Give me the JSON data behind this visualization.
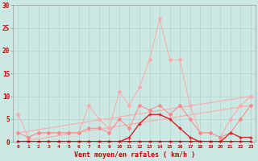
{
  "x": [
    0,
    1,
    2,
    3,
    4,
    5,
    6,
    7,
    8,
    9,
    10,
    11,
    12,
    13,
    14,
    15,
    16,
    17,
    18,
    19,
    20,
    21,
    22,
    23
  ],
  "series_rafales_max": [
    6,
    1,
    2,
    2,
    2,
    2,
    2,
    8,
    5,
    3,
    11,
    8,
    12,
    18,
    27,
    18,
    18,
    8,
    2,
    2,
    1,
    5,
    8,
    10
  ],
  "series_rafales_mid": [
    2,
    1,
    2,
    2,
    2,
    2,
    2,
    3,
    3,
    2,
    5,
    3,
    8,
    7,
    8,
    6,
    8,
    5,
    2,
    2,
    1,
    2,
    5,
    8
  ],
  "series_vent_moyen": [
    0,
    0,
    0,
    0,
    0,
    0,
    0,
    0,
    0,
    0,
    0,
    1,
    4,
    6,
    6,
    5,
    3,
    1,
    0,
    0,
    0,
    2,
    1,
    1
  ],
  "series_baseline": [
    0,
    0,
    0,
    0,
    0,
    0,
    0,
    0,
    0,
    0,
    0,
    0,
    0,
    0,
    0,
    0,
    0,
    0,
    0,
    0,
    0,
    0,
    0,
    0
  ],
  "trend1_x": [
    0,
    23
  ],
  "trend1_y": [
    2,
    10
  ],
  "trend2_x": [
    0,
    23
  ],
  "trend2_y": [
    0,
    8
  ],
  "bg_color": "#cce8e4",
  "grid_color": "#aacccc",
  "color_light": "#ffaaaa",
  "color_medium": "#ff8888",
  "color_dark": "#dd2222",
  "color_darkest": "#cc0000",
  "xlabel": "Vent moyen/en rafales ( km/h )",
  "ylim": [
    0,
    30
  ],
  "xlim": [
    -0.5,
    23.5
  ],
  "yticks": [
    0,
    5,
    10,
    15,
    20,
    25,
    30
  ],
  "xticks": [
    0,
    1,
    2,
    3,
    4,
    5,
    6,
    7,
    8,
    9,
    10,
    11,
    12,
    13,
    14,
    15,
    16,
    17,
    18,
    19,
    20,
    21,
    22,
    23
  ]
}
